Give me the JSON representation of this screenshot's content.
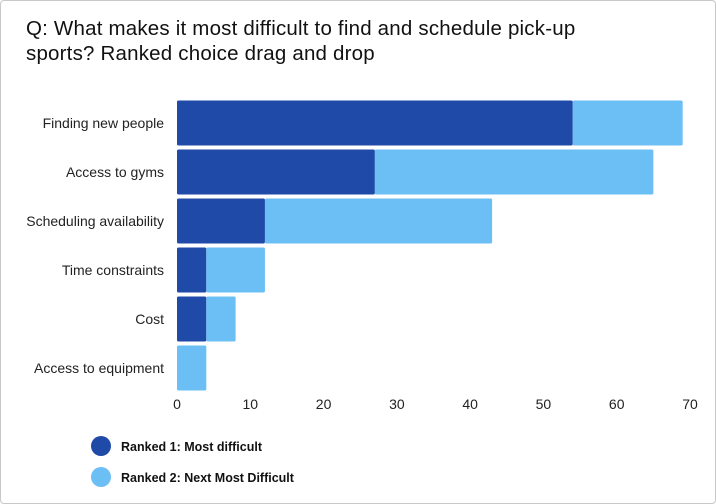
{
  "title": "Q: What makes it most difficult to find and schedule pick-up sports? Ranked choice drag and drop",
  "colors": {
    "series1": "#1f4aa8",
    "series2": "#6cbff5",
    "background": "#ffffff"
  },
  "chart_data": {
    "type": "bar",
    "orientation": "horizontal",
    "stacked": true,
    "categories": [
      "Finding new people",
      "Access to gyms",
      "Scheduling availability",
      "Time constraints",
      "Cost",
      "Access to equipment"
    ],
    "series": [
      {
        "name": "Ranked 1: Most difficult",
        "values": [
          54,
          27,
          12,
          4,
          4,
          0
        ]
      },
      {
        "name": "Ranked 2: Next Most Difficult",
        "values": [
          15,
          38,
          31,
          8,
          4,
          4
        ]
      }
    ],
    "x_ticks": [
      0,
      10,
      20,
      30,
      40,
      50,
      60,
      70
    ],
    "xlim": [
      0,
      70
    ],
    "grid": false,
    "legend_position": "bottom-left"
  }
}
